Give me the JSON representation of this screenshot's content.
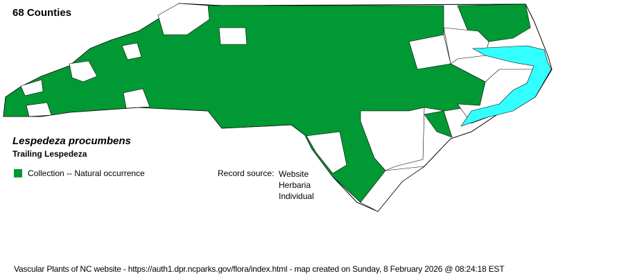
{
  "header": {
    "county_count": "68 Counties"
  },
  "species": {
    "scientific_name": "Lespedeza procumbens",
    "common_name": "Trailing Lespedeza"
  },
  "legend": {
    "items": [
      {
        "label": "Collection -- Natural occurrence",
        "color": "#009933"
      }
    ]
  },
  "record_source": {
    "label": "Record source:",
    "sources": [
      "Website",
      "Herbaria",
      "Individual"
    ]
  },
  "map": {
    "present_color": "#009933",
    "absent_color": "#ffffff",
    "water_color": "#33ffff",
    "border_color": "#000000"
  },
  "footer": {
    "text": "Vascular Plants of NC website - https://auth1.dpr.ncparks.gov/flora/index.html - map created on Sunday, 8 February 2026 @ 08:24:18 EST"
  }
}
